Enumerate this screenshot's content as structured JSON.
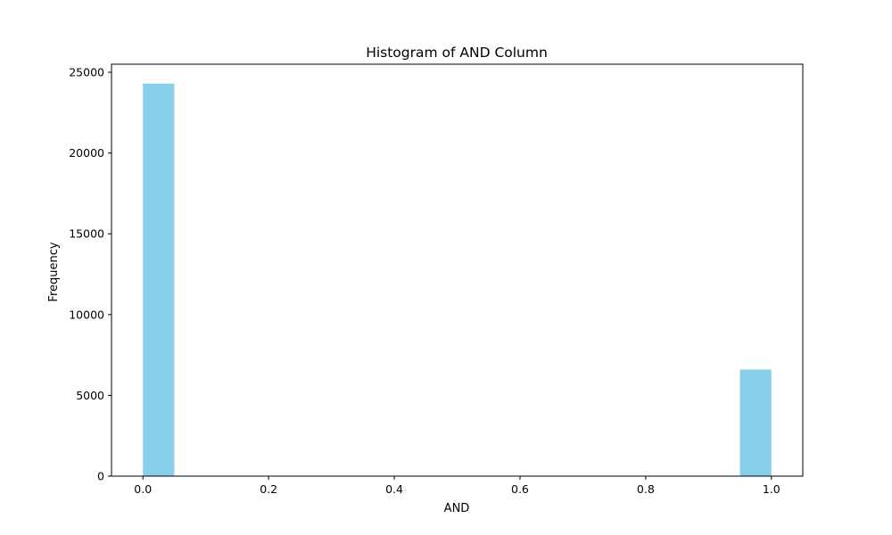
{
  "chart_data": {
    "type": "bar",
    "title": "Histogram of AND Column",
    "xlabel": "AND",
    "ylabel": "Frequency",
    "xlim": [
      -0.05,
      1.05
    ],
    "ylim": [
      0,
      25500
    ],
    "xticks": [
      0.0,
      0.2,
      0.4,
      0.6,
      0.8,
      1.0
    ],
    "xtick_labels": [
      "0.0",
      "0.2",
      "0.4",
      "0.6",
      "0.8",
      "1.0"
    ],
    "yticks": [
      0,
      5000,
      10000,
      15000,
      20000,
      25000
    ],
    "ytick_labels": [
      "0",
      "5000",
      "10000",
      "15000",
      "20000",
      "25000"
    ],
    "bin_width": 0.05,
    "bins": [
      {
        "start": 0.0,
        "end": 0.05,
        "value": 24300
      },
      {
        "start": 0.95,
        "end": 1.0,
        "value": 6600
      }
    ],
    "grid": false,
    "bar_color": "#87ceeb"
  }
}
